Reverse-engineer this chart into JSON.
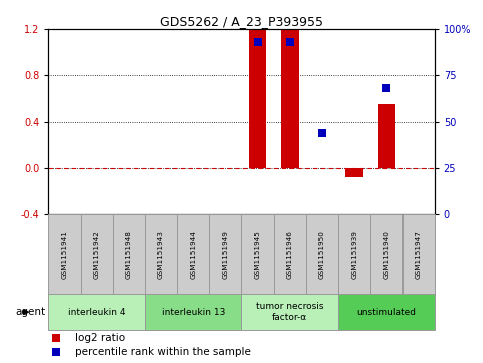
{
  "title": "GDS5262 / A_23_P393955",
  "samples": [
    "GSM1151941",
    "GSM1151942",
    "GSM1151948",
    "GSM1151943",
    "GSM1151944",
    "GSM1151949",
    "GSM1151945",
    "GSM1151946",
    "GSM1151950",
    "GSM1151939",
    "GSM1151940",
    "GSM1151947"
  ],
  "log2_ratio": [
    0.0,
    0.0,
    0.0,
    0.0,
    0.0,
    0.0,
    1.2,
    1.2,
    0.0,
    -0.08,
    0.55,
    0.0
  ],
  "percentile_rank": [
    null,
    null,
    null,
    null,
    null,
    null,
    93,
    93,
    44,
    null,
    68,
    null
  ],
  "ylim_left": [
    -0.4,
    1.2
  ],
  "ylim_right": [
    0,
    100
  ],
  "yticks_left": [
    -0.4,
    0.0,
    0.4,
    0.8,
    1.2
  ],
  "yticks_right": [
    0,
    25,
    50,
    75,
    100
  ],
  "agents": [
    {
      "label": "interleukin 4",
      "start": 0,
      "end": 2,
      "color": "#b8f0b8"
    },
    {
      "label": "interleukin 13",
      "start": 3,
      "end": 5,
      "color": "#88dd88"
    },
    {
      "label": "tumor necrosis\nfactor-α",
      "start": 6,
      "end": 8,
      "color": "#b8f0b8"
    },
    {
      "label": "unstimulated",
      "start": 9,
      "end": 11,
      "color": "#55cc55"
    }
  ],
  "bar_color": "#cc0000",
  "dot_color": "#0000bb",
  "zero_line_color": "#cc0000",
  "bg_color": "#ffffff",
  "sample_box_color": "#cccccc",
  "sample_box_edge": "#999999",
  "agent_label": "agent",
  "legend_log2": "log2 ratio",
  "legend_pct": "percentile rank within the sample",
  "bar_width": 0.55,
  "dot_size": 40,
  "n_samples": 12
}
